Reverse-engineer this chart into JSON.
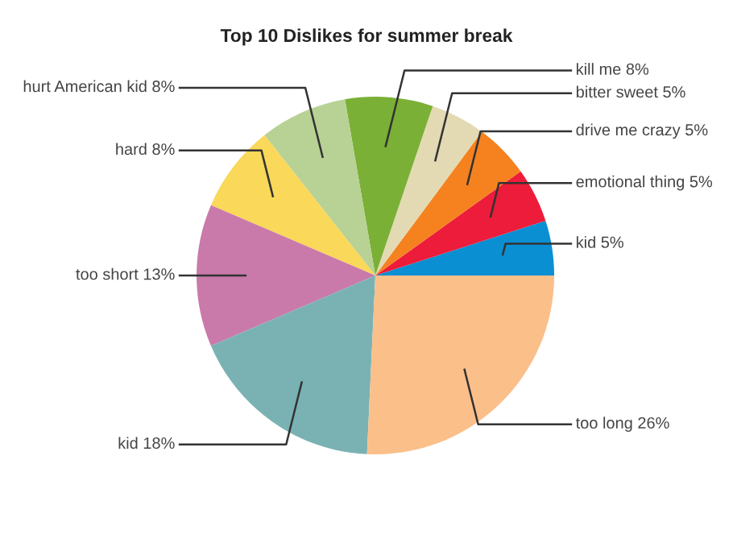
{
  "chart_data": {
    "type": "pie",
    "title": "Top 10 Dislikes for summer break",
    "categories": [
      "kid",
      "emotional thing",
      "drive me crazy",
      "bitter sweet",
      "kill me",
      "hurt American kid",
      "hard",
      "too short",
      "kid",
      "too long"
    ],
    "values": [
      5,
      5,
      5,
      5,
      8,
      8,
      8,
      13,
      18,
      26
    ],
    "value_labels": [
      "5%",
      "5%",
      "5%",
      "5%",
      "8%",
      "8%",
      "8%",
      "13%",
      "18%",
      "26%"
    ],
    "colors": [
      "#0a8fd3",
      "#ec1c3a",
      "#f5821f",
      "#e3dab3",
      "#7ab035",
      "#b8d195",
      "#f9d85a",
      "#c97aaa",
      "#7ab2b3",
      "#fbbf8a"
    ]
  }
}
